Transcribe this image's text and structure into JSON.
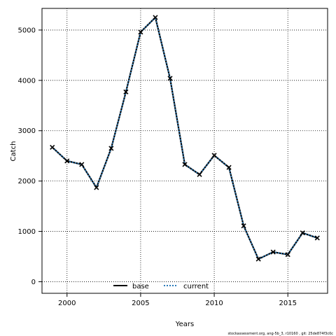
{
  "chart_data": {
    "type": "line",
    "xlabel": "Years",
    "ylabel": "Catch",
    "xlim": [
      1998.3,
      2017.7
    ],
    "ylim": [
      -230,
      5430
    ],
    "xticks": [
      2000,
      2005,
      2010,
      2015
    ],
    "yticks": [
      0,
      1000,
      2000,
      3000,
      4000,
      5000
    ],
    "grid": true,
    "legend_position": "bottom-center",
    "x": [
      1999,
      2000,
      2001,
      2002,
      2003,
      2004,
      2005,
      2006,
      2007,
      2008,
      2009,
      2010,
      2011,
      2012,
      2013,
      2014,
      2015,
      2016,
      2017
    ],
    "series": [
      {
        "name": "base",
        "color": "#000000",
        "style": "solid",
        "values": [
          2670,
          2400,
          2330,
          1870,
          2650,
          3770,
          4960,
          5250,
          4040,
          2330,
          2130,
          2510,
          2270,
          1110,
          450,
          590,
          540,
          970,
          870
        ]
      },
      {
        "name": "current",
        "color": "#2b7bba",
        "style": "dotted",
        "values": [
          2670,
          2400,
          2330,
          1870,
          2650,
          3770,
          4960,
          5250,
          4040,
          2330,
          2130,
          2510,
          2270,
          1110,
          450,
          590,
          540,
          970,
          870
        ]
      }
    ],
    "footer": "stockassessment.org, ang-5b_3, r10160 , git: 25de874f3c0c"
  }
}
